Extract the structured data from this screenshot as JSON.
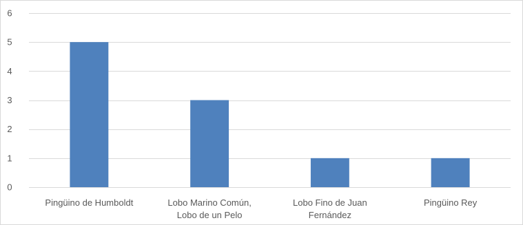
{
  "chart_data": {
    "type": "bar",
    "title": "",
    "xlabel": "",
    "ylabel": "",
    "ylim": [
      0,
      6
    ],
    "yticks": [
      0,
      1,
      2,
      3,
      4,
      5,
      6
    ],
    "grid": true,
    "legend": "none",
    "categories": [
      "Pingüino de Humboldt",
      "Lobo Marino Común, Lobo de un Pelo",
      "Lobo Fino de Juan Fernández",
      "Pingüino Rey"
    ],
    "category_lines": [
      [
        "Pingüino de Humboldt"
      ],
      [
        "Lobo Marino Común,",
        "Lobo de un Pelo"
      ],
      [
        "Lobo Fino de Juan",
        "Fernández"
      ],
      [
        "Pingüino Rey"
      ]
    ],
    "values": [
      5,
      3,
      1,
      1
    ],
    "bar_color": "#4f81bd",
    "grid_color": "#d9d9d9",
    "text_color": "#595959"
  }
}
